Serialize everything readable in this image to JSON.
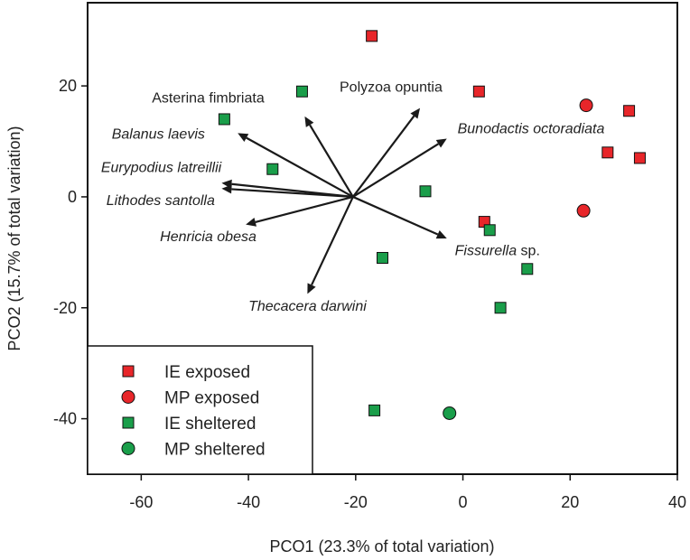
{
  "chart_data": {
    "type": "scatter",
    "xlabel": "PCO1 (23.3% of total variation)",
    "ylabel": "PCO2 (15.7% of total variation)",
    "xlim": [
      -70,
      40
    ],
    "ylim": [
      -50,
      35
    ],
    "xticks": [
      -60,
      -40,
      -20,
      0,
      20,
      40
    ],
    "yticks": [
      -40,
      -20,
      0,
      20
    ],
    "grid": false,
    "legend_position": "bottom-left",
    "series": [
      {
        "name": "IE exposed",
        "marker": "square",
        "color": "#e8262a",
        "points": [
          {
            "x": -17,
            "y": 29
          },
          {
            "x": 3,
            "y": 19
          },
          {
            "x": 31,
            "y": 15.5
          },
          {
            "x": 27,
            "y": 8
          },
          {
            "x": 33,
            "y": 7
          },
          {
            "x": 4,
            "y": -4.5
          }
        ]
      },
      {
        "name": "MP exposed",
        "marker": "circle",
        "color": "#e8262a",
        "points": [
          {
            "x": 23,
            "y": 16.5
          },
          {
            "x": 22.5,
            "y": -2.5
          }
        ]
      },
      {
        "name": "IE sheltered",
        "marker": "square",
        "color": "#1a9e4a",
        "points": [
          {
            "x": -30,
            "y": 19
          },
          {
            "x": -44.5,
            "y": 14
          },
          {
            "x": -35.5,
            "y": 5
          },
          {
            "x": -7,
            "y": 1
          },
          {
            "x": 5,
            "y": -6
          },
          {
            "x": -15,
            "y": -11
          },
          {
            "x": 12,
            "y": -13
          },
          {
            "x": 7,
            "y": -20
          },
          {
            "x": -16.5,
            "y": -38.5
          }
        ]
      },
      {
        "name": "MP sheltered",
        "marker": "circle",
        "color": "#1a9e4a",
        "points": [
          {
            "x": -2.5,
            "y": -39
          }
        ]
      }
    ],
    "vectors": {
      "origin": {
        "x": -20.5,
        "y": 0
      },
      "items": [
        {
          "label": "Asterina fimbriata",
          "italic": true,
          "x": -29.5,
          "y": 14.5
        },
        {
          "label": "Polyzoa opuntia",
          "italic": false,
          "x": -8,
          "y": 16
        },
        {
          "label": "Bunodactis octoradiata",
          "italic": true,
          "x": -3,
          "y": 10.5
        },
        {
          "label": "Balanus laevis",
          "italic": true,
          "x": -42,
          "y": 11.5
        },
        {
          "label": "Eurypodius latreillii",
          "italic": true,
          "x": -45,
          "y": 2.5
        },
        {
          "label": "Lithodes santolla",
          "italic": true,
          "x": -45,
          "y": 1.5
        },
        {
          "label": "Henricia obesa",
          "italic": true,
          "x": -40.5,
          "y": -5
        },
        {
          "label": "Fissurella sp.",
          "italic": true,
          "x": -3,
          "y": -7.5
        },
        {
          "label": "Thecacera darwini",
          "italic": true,
          "x": -29,
          "y": -17.5
        }
      ]
    },
    "vector_labels": [
      {
        "parts": [
          {
            "text": "Asterina fimbriata",
            "italic": false
          }
        ],
        "x": -58,
        "y": 17
      },
      {
        "parts": [
          {
            "text": "Polyzoa opuntia",
            "italic": false
          }
        ],
        "x": -23,
        "y": 19
      },
      {
        "parts": [
          {
            "text": "Bunodactis octoradiata",
            "italic": true
          }
        ],
        "x": -1,
        "y": 11.5
      },
      {
        "parts": [
          {
            "text": "Balanus laevis",
            "italic": true
          }
        ],
        "x": -65.5,
        "y": 10.5
      },
      {
        "parts": [
          {
            "text": "Eurypodius latreillii",
            "italic": true
          }
        ],
        "x": -67.5,
        "y": 4.5
      },
      {
        "parts": [
          {
            "text": "Lithodes santolla",
            "italic": true
          }
        ],
        "x": -66.5,
        "y": -1.5
      },
      {
        "parts": [
          {
            "text": "Henricia obesa",
            "italic": true
          }
        ],
        "x": -56.5,
        "y": -8
      },
      {
        "parts": [
          {
            "text": "Fissurella",
            "italic": true
          },
          {
            "text": " sp.",
            "italic": false
          }
        ],
        "x": -1.5,
        "y": -10.5
      },
      {
        "parts": [
          {
            "text": "Thecacera darwini",
            "italic": true
          }
        ],
        "x": -40,
        "y": -20.5
      }
    ]
  }
}
